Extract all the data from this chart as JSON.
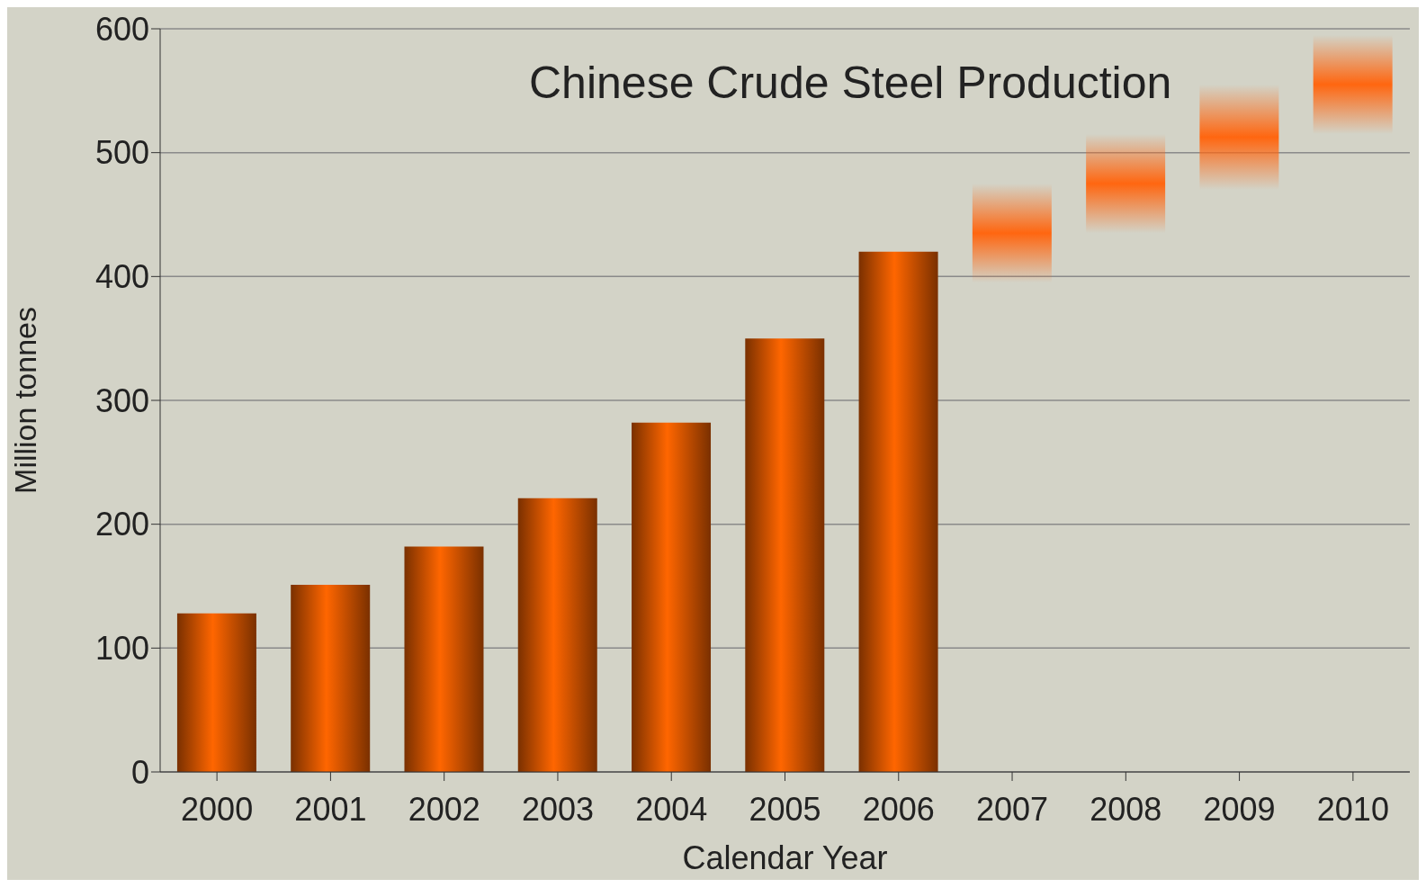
{
  "chart_data": {
    "type": "bar",
    "title": "Chinese Crude Steel Production",
    "xlabel": "Calendar Year",
    "ylabel": "Million tonnes",
    "categories": [
      "2000",
      "2001",
      "2002",
      "2003",
      "2004",
      "2005",
      "2006",
      "2007",
      "2008",
      "2009",
      "2010"
    ],
    "values": [
      128,
      151,
      182,
      221,
      282,
      350,
      420,
      80,
      80,
      85,
      80
    ],
    "base": [
      0,
      0,
      0,
      0,
      0,
      0,
      0,
      395,
      435,
      470,
      515
    ],
    "colors": [
      "#ff6600",
      "#ff6600",
      "#ff6600",
      "#ff6600",
      "#ff6600",
      "#ff6600",
      "#ff6600",
      "#ff6610",
      "#ff6610",
      "#ff6610",
      "#ff6610"
    ],
    "ylim": [
      0,
      600
    ],
    "yticks": [
      0,
      100,
      200,
      300,
      400,
      500,
      600
    ],
    "grid": "y"
  }
}
